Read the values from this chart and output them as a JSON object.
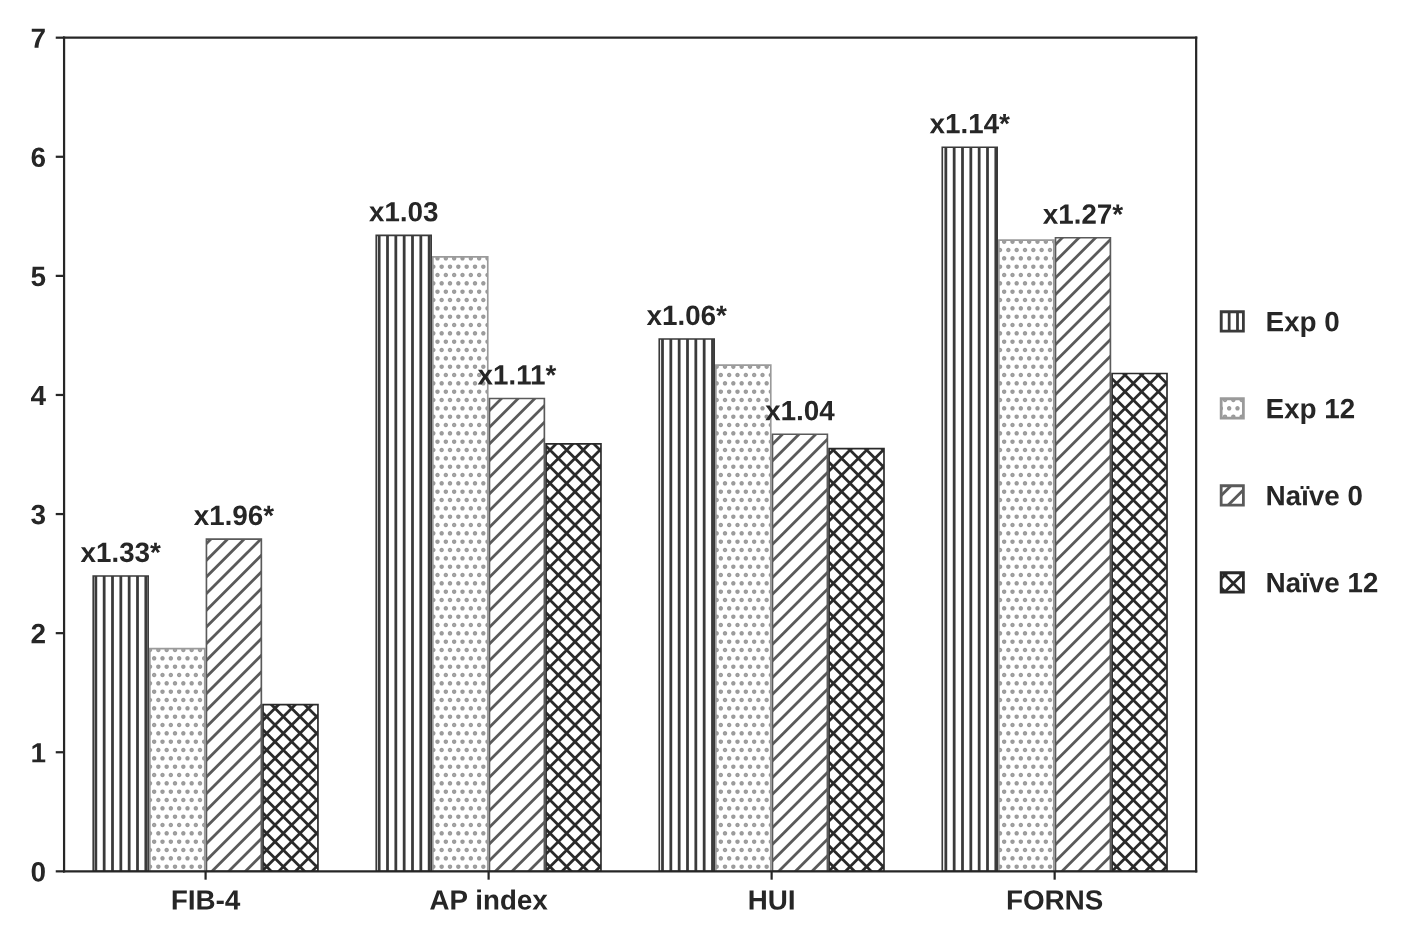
{
  "chart_data": {
    "type": "bar",
    "categories": [
      "FIB-4",
      "AP index",
      "HUI",
      "FORNS"
    ],
    "series": [
      {
        "name": "Exp 0",
        "color": "#3a3a3a",
        "values": [
          2.48,
          5.34,
          4.47,
          6.08
        ],
        "value_labels": [
          "x1.33*",
          "x1.03",
          "x1.06*",
          "x1.14*"
        ]
      },
      {
        "name": "Exp 12",
        "color": "#9a9a9a",
        "values": [
          1.87,
          5.16,
          4.25,
          5.3
        ]
      },
      {
        "name": "Naïve 0",
        "color": "#5a5a5a",
        "values": [
          2.79,
          3.97,
          3.67,
          5.32
        ],
        "value_labels": [
          "x1.96*",
          "x1.11*",
          "x1.04",
          "x1.27*"
        ]
      },
      {
        "name": "Naïve 12",
        "color": "#2a2a2a",
        "values": [
          1.4,
          3.59,
          3.55,
          4.18
        ]
      }
    ],
    "ylim": [
      0,
      7
    ],
    "yticks": [
      0,
      1,
      2,
      3,
      4,
      5,
      6,
      7
    ],
    "grid": false,
    "legend": "right"
  }
}
